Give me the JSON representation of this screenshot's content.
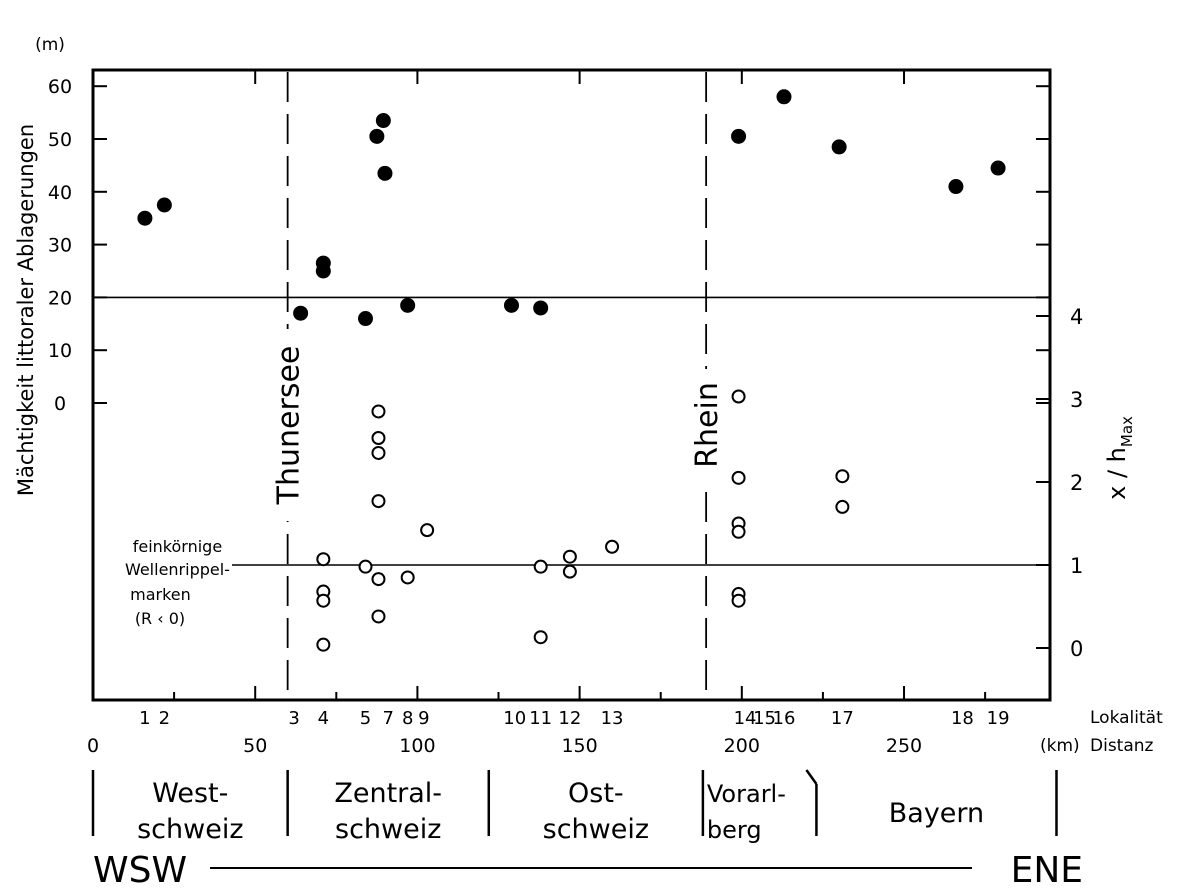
{
  "chart_data": {
    "type": "scatter",
    "ylabel": "Mächtigkeit littoraler Ablagerungen",
    "yunit": "(m)",
    "y2label": "x / h",
    "y2label_sub": "Max",
    "xlabel_loc": "Lokalität",
    "xlabel_dist": "Distanz",
    "xunit": "(km)",
    "xlim": [
      0,
      295
    ],
    "ylim_top": [
      0,
      60
    ],
    "ylim_bottom": [
      -0.5,
      4
    ],
    "y_ticks": [
      0,
      10,
      20,
      30,
      40,
      50,
      60
    ],
    "y2_ticks": [
      0,
      1,
      2,
      3,
      4
    ],
    "x_ticks": [
      0,
      50,
      100,
      150,
      200,
      250
    ],
    "localities": [
      {
        "label": "1",
        "x": 16
      },
      {
        "label": "2",
        "x": 22
      },
      {
        "label": "3",
        "x": 62
      },
      {
        "label": "4",
        "x": 71
      },
      {
        "label": "5",
        "x": 84
      },
      {
        "label": "7",
        "x": 91
      },
      {
        "label": "8",
        "x": 97
      },
      {
        "label": "9",
        "x": 102
      },
      {
        "label": "10",
        "x": 130
      },
      {
        "label": "11",
        "x": 138
      },
      {
        "label": "12",
        "x": 147
      },
      {
        "label": "13",
        "x": 160
      },
      {
        "label": "14",
        "x": 201
      },
      {
        "label": "15",
        "x": 207
      },
      {
        "label": "16",
        "x": 213
      },
      {
        "label": "17",
        "x": 231
      },
      {
        "label": "18",
        "x": 268
      },
      {
        "label": "19",
        "x": 279
      }
    ],
    "dividers": [
      {
        "label": "Thunersee",
        "x": 60
      },
      {
        "label": "Rhein",
        "x": 189
      }
    ],
    "reference_lines": [
      {
        "axis": "top",
        "value": 20
      },
      {
        "axis": "bottom",
        "value": 1,
        "label": [
          "feinkörnige",
          "Wellenrippel-",
          "marken",
          "(R ‹ 0)"
        ]
      }
    ],
    "series": [
      {
        "marker": "filled",
        "axis": "top",
        "points": [
          {
            "x": 16,
            "y": 35
          },
          {
            "x": 22,
            "y": 37.5
          },
          {
            "x": 64,
            "y": 17
          },
          {
            "x": 71,
            "y": 26.5
          },
          {
            "x": 71,
            "y": 25
          },
          {
            "x": 84,
            "y": 16
          },
          {
            "x": 87.5,
            "y": 50.5
          },
          {
            "x": 89.5,
            "y": 53.5
          },
          {
            "x": 90,
            "y": 43.5
          },
          {
            "x": 97,
            "y": 18.5
          },
          {
            "x": 129,
            "y": 18.5
          },
          {
            "x": 138,
            "y": 18
          },
          {
            "x": 199,
            "y": 50.5
          },
          {
            "x": 213,
            "y": 58
          },
          {
            "x": 230,
            "y": 48.5
          },
          {
            "x": 266,
            "y": 41
          },
          {
            "x": 279,
            "y": 44.5
          }
        ]
      },
      {
        "marker": "open",
        "axis": "bottom",
        "points": [
          {
            "x": 71,
            "y": 1.07
          },
          {
            "x": 71,
            "y": 0.68
          },
          {
            "x": 71,
            "y": 0.57
          },
          {
            "x": 71,
            "y": 0.04
          },
          {
            "x": 84,
            "y": 0.98
          },
          {
            "x": 88,
            "y": 2.85
          },
          {
            "x": 88,
            "y": 2.53
          },
          {
            "x": 88,
            "y": 2.35
          },
          {
            "x": 88,
            "y": 1.77
          },
          {
            "x": 88,
            "y": 0.83
          },
          {
            "x": 88,
            "y": 0.38
          },
          {
            "x": 97,
            "y": 0.85
          },
          {
            "x": 103,
            "y": 1.42
          },
          {
            "x": 138,
            "y": 0.98
          },
          {
            "x": 138,
            "y": 0.13
          },
          {
            "x": 147,
            "y": 1.1
          },
          {
            "x": 147,
            "y": 0.92
          },
          {
            "x": 160,
            "y": 1.22
          },
          {
            "x": 199,
            "y": 3.03
          },
          {
            "x": 199,
            "y": 2.05
          },
          {
            "x": 199,
            "y": 1.5
          },
          {
            "x": 199,
            "y": 1.4
          },
          {
            "x": 199,
            "y": 0.65
          },
          {
            "x": 199,
            "y": 0.57
          },
          {
            "x": 231,
            "y": 2.07
          },
          {
            "x": 231,
            "y": 1.7
          }
        ]
      }
    ],
    "regions": [
      {
        "lines": [
          "West-",
          "schweiz"
        ],
        "from": 0,
        "to": 60
      },
      {
        "lines": [
          "Zentral-",
          "schweiz"
        ],
        "from": 60,
        "to": 122
      },
      {
        "lines": [
          "Ost-",
          "schweiz"
        ],
        "from": 122,
        "to": 188
      },
      {
        "lines": [
          "Vorarl-",
          "berg"
        ],
        "from": 188,
        "to": 223
      },
      {
        "lines": [
          "Bayern"
        ],
        "from": 223,
        "to": 297
      }
    ],
    "direction_left": "WSW",
    "direction_right": "ENE"
  }
}
